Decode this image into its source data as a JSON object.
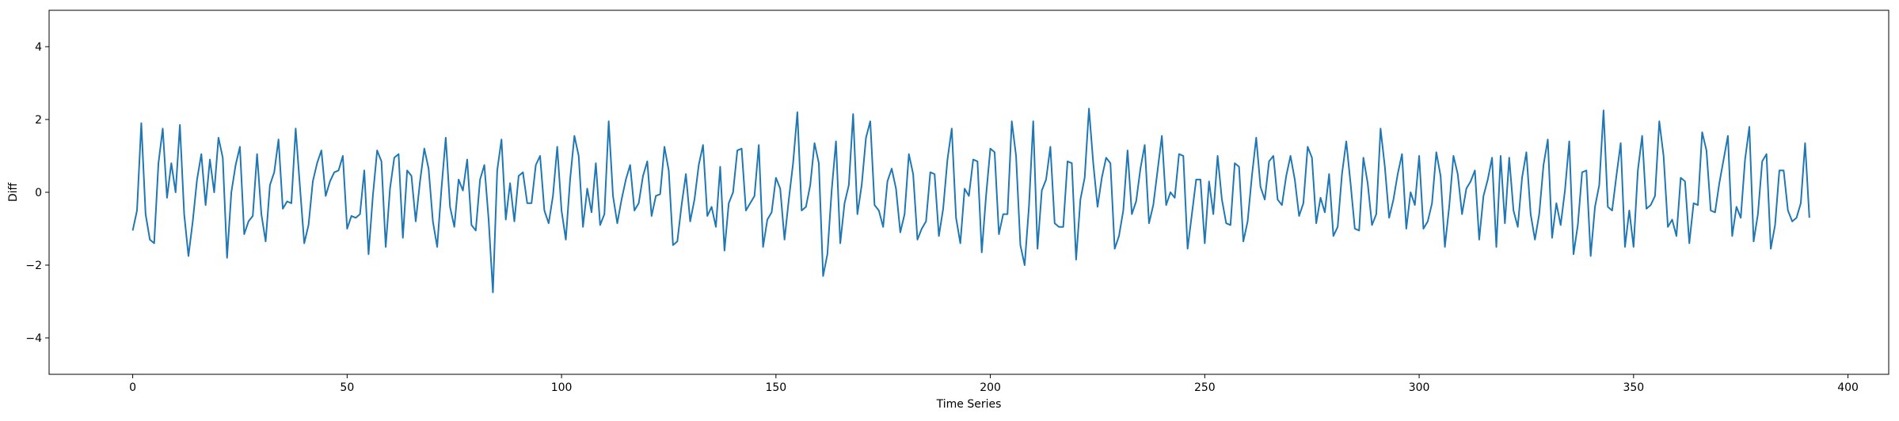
{
  "chart_data": {
    "type": "line",
    "title": "",
    "xlabel": "Time Series",
    "ylabel": "Diff",
    "xlim": [
      -19.5,
      409.5
    ],
    "ylim": [
      -5,
      5
    ],
    "xticks": [
      0,
      50,
      100,
      150,
      200,
      250,
      300,
      350,
      400
    ],
    "yticks": [
      -4,
      -2,
      0,
      2,
      4
    ],
    "xtick_labels": [
      "0",
      "50",
      "100",
      "150",
      "200",
      "250",
      "300",
      "350",
      "400"
    ],
    "ytick_labels": [
      "−4",
      "−2",
      "0",
      "2",
      "4"
    ],
    "grid": false,
    "legend": false,
    "line_color": "#1f77b4",
    "series": [
      {
        "values": [
          -1.05,
          -0.5,
          1.9,
          -0.6,
          -1.3,
          -1.4,
          0.8,
          1.75,
          -0.15,
          0.8,
          0.0,
          1.85,
          -0.6,
          -1.75,
          -0.8,
          0.35,
          1.05,
          -0.35,
          0.9,
          0.0,
          1.5,
          0.95,
          -1.8,
          0.0,
          0.75,
          1.25,
          -1.15,
          -0.8,
          -0.65,
          1.05,
          -0.6,
          -1.35,
          0.2,
          0.55,
          1.45,
          -0.45,
          -0.25,
          -0.3,
          1.75,
          0.15,
          -1.4,
          -0.9,
          0.3,
          0.8,
          1.15,
          -0.1,
          0.3,
          0.55,
          0.6,
          1.0,
          -1.0,
          -0.65,
          -0.7,
          -0.6,
          0.6,
          -1.7,
          -0.1,
          1.15,
          0.85,
          -1.5,
          0.1,
          0.95,
          1.05,
          -1.25,
          0.6,
          0.45,
          -0.8,
          0.3,
          1.2,
          0.65,
          -0.8,
          -1.5,
          0.1,
          1.5,
          -0.4,
          -0.95,
          0.35,
          0.05,
          0.9,
          -0.9,
          -1.05,
          0.35,
          0.75,
          -0.75,
          -2.75,
          0.6,
          1.45,
          -0.75,
          0.25,
          -0.8,
          0.45,
          0.55,
          -0.3,
          -0.3,
          0.75,
          1.0,
          -0.5,
          -0.85,
          -0.1,
          1.25,
          -0.5,
          -1.3,
          0.35,
          1.55,
          1.0,
          -0.95,
          0.1,
          -0.55,
          0.8,
          -0.9,
          -0.6,
          1.95,
          -0.1,
          -0.85,
          -0.2,
          0.35,
          0.75,
          -0.5,
          -0.3,
          0.45,
          0.85,
          -0.65,
          -0.1,
          -0.05,
          1.25,
          0.6,
          -1.45,
          -1.35,
          -0.35,
          0.5,
          -0.8,
          -0.2,
          0.75,
          1.3,
          -0.65,
          -0.4,
          -0.95,
          0.7,
          -1.6,
          -0.3,
          0.0,
          1.15,
          1.2,
          -0.5,
          -0.3,
          -0.1,
          1.3,
          -1.5,
          -0.75,
          -0.55,
          0.4,
          0.1,
          -1.3,
          -0.2,
          0.8,
          2.2,
          -0.5,
          -0.4,
          0.2,
          1.35,
          0.8,
          -2.3,
          -1.7,
          0.05,
          1.4,
          -1.4,
          -0.3,
          0.2,
          2.15,
          -0.6,
          0.2,
          1.5,
          1.95,
          -0.35,
          -0.5,
          -0.95,
          0.3,
          0.65,
          0.1,
          -1.1,
          -0.6,
          1.05,
          0.5,
          -1.3,
          -1.0,
          -0.8,
          0.55,
          0.5,
          -1.2,
          -0.45,
          0.9,
          1.75,
          -0.7,
          -1.4,
          0.1,
          -0.1,
          0.9,
          0.85,
          -1.65,
          -0.1,
          1.2,
          1.1,
          -1.15,
          -0.6,
          -0.6,
          1.95,
          1.0,
          -1.45,
          -2.0,
          -0.4,
          1.95,
          -1.55,
          0.05,
          0.35,
          1.25,
          -0.85,
          -0.95,
          -0.95,
          0.85,
          0.8,
          -1.85,
          -0.2,
          0.4,
          2.3,
          0.8,
          -0.4,
          0.4,
          0.95,
          0.8,
          -1.55,
          -1.2,
          -0.5,
          1.15,
          -0.6,
          -0.25,
          0.65,
          1.3,
          -0.85,
          -0.35,
          0.6,
          1.55,
          -0.35,
          0.0,
          -0.15,
          1.05,
          1.0,
          -1.55,
          -0.6,
          0.35,
          0.35,
          -1.4,
          0.3,
          -0.6,
          1.0,
          -0.2,
          -0.85,
          -0.9,
          0.8,
          0.7,
          -1.35,
          -0.8,
          0.45,
          1.5,
          0.15,
          -0.2,
          0.85,
          1.0,
          -0.2,
          -0.35,
          0.45,
          1.0,
          0.35,
          -0.65,
          -0.3,
          1.25,
          0.95,
          -0.85,
          -0.15,
          -0.55,
          0.5,
          -1.2,
          -0.95,
          0.5,
          1.4,
          0.25,
          -1.0,
          -1.05,
          0.95,
          0.25,
          -0.9,
          -0.6,
          1.75,
          0.7,
          -0.7,
          -0.2,
          0.5,
          1.05,
          -1.0,
          0.0,
          -0.35,
          1.0,
          -1.0,
          -0.8,
          -0.3,
          1.1,
          0.45,
          -1.5,
          -0.4,
          1.0,
          0.5,
          -0.6,
          0.1,
          0.3,
          0.6,
          -1.3,
          -0.1,
          0.35,
          0.95,
          -1.5,
          1.0,
          -0.85,
          0.95,
          -0.5,
          -0.95,
          0.4,
          1.1,
          -0.6,
          -1.3,
          -0.6,
          0.75,
          1.45,
          -1.25,
          -0.3,
          -0.9,
          0.05,
          1.4,
          -1.7,
          -0.9,
          0.55,
          0.6,
          -1.75,
          -0.4,
          0.2,
          2.25,
          -0.4,
          -0.5,
          0.45,
          1.35,
          -1.5,
          -0.5,
          -1.5,
          0.6,
          1.55,
          -0.45,
          -0.35,
          -0.1,
          1.95,
          1.0,
          -0.95,
          -0.75,
          -1.2,
          0.4,
          0.3,
          -1.4,
          -0.3,
          -0.35,
          1.65,
          1.15,
          -0.5,
          -0.55,
          0.25,
          0.9,
          1.55,
          -1.2,
          -0.4,
          -0.7,
          0.9,
          1.8,
          -1.35,
          -0.6,
          0.85,
          1.05,
          -1.55,
          -0.9,
          0.6,
          0.6,
          -0.5,
          -0.8,
          -0.7,
          -0.3,
          1.35,
          -0.7
        ]
      }
    ]
  }
}
